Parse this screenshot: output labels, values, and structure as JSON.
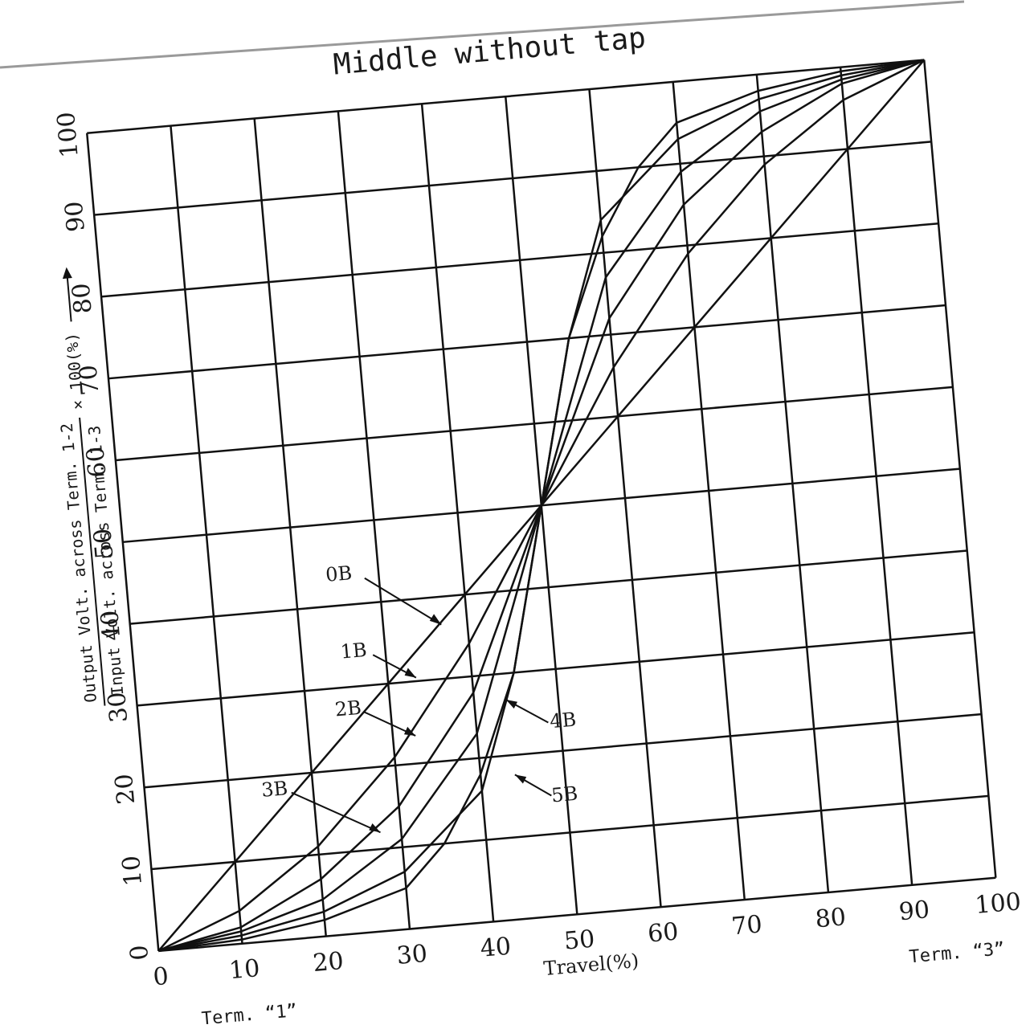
{
  "chart_data": {
    "type": "line",
    "title": "Middle without tap",
    "xlabel": "Travel(%)",
    "ylabel": {
      "numerator": "Output Volt. across  Term. 1-2",
      "denominator": "Input  Volt. across  Term. 1-3",
      "suffix": "× 100(%)"
    },
    "xlim": [
      0,
      100
    ],
    "ylim": [
      0,
      100
    ],
    "x_ticks": [
      "0",
      "10",
      "20",
      "30",
      "40",
      "50",
      "60",
      "70",
      "80",
      "90",
      "100"
    ],
    "y_ticks": [
      "0",
      "10",
      "20",
      "30",
      "40",
      "50",
      "60",
      "70",
      "80",
      "90",
      "100"
    ],
    "grid": true,
    "term_left": "Term. “1”",
    "term_right": "Term. “3”",
    "series": [
      {
        "name": "0B",
        "x": [
          0,
          50,
          100
        ],
        "y": [
          0,
          50,
          100
        ]
      },
      {
        "name": "1B",
        "x": [
          0,
          10,
          20,
          30,
          40,
          50,
          60,
          70,
          80,
          90,
          100
        ],
        "y": [
          0,
          4,
          11,
          21,
          34,
          50,
          66,
          79,
          89,
          96,
          100
        ]
      },
      {
        "name": "2B",
        "x": [
          0,
          10,
          20,
          30,
          40,
          50,
          60,
          70,
          80,
          90,
          100
        ],
        "y": [
          0,
          2,
          7,
          15,
          28,
          50,
          72,
          85,
          93,
          98,
          100
        ]
      },
      {
        "name": "3B",
        "x": [
          0,
          10,
          20,
          30,
          40,
          50,
          60,
          70,
          80,
          90,
          100
        ],
        "y": [
          0,
          1.5,
          4.5,
          11,
          23,
          50,
          77,
          89,
          95.5,
          98.5,
          100
        ]
      },
      {
        "name": "4B",
        "x": [
          0,
          10,
          20,
          30,
          40,
          45,
          50,
          55,
          60,
          70,
          80,
          90,
          100
        ],
        "y": [
          0,
          1,
          3,
          7,
          16,
          30,
          50,
          70,
          84,
          93,
          97,
          99,
          100
        ]
      },
      {
        "name": "5B",
        "x": [
          0,
          10,
          20,
          30,
          35,
          40,
          45,
          50,
          55,
          60,
          65,
          70,
          80,
          90,
          100
        ],
        "y": [
          0,
          0.5,
          2,
          5,
          10,
          18,
          30,
          50,
          70,
          82,
          90,
          95,
          98,
          99.5,
          100
        ]
      }
    ]
  }
}
